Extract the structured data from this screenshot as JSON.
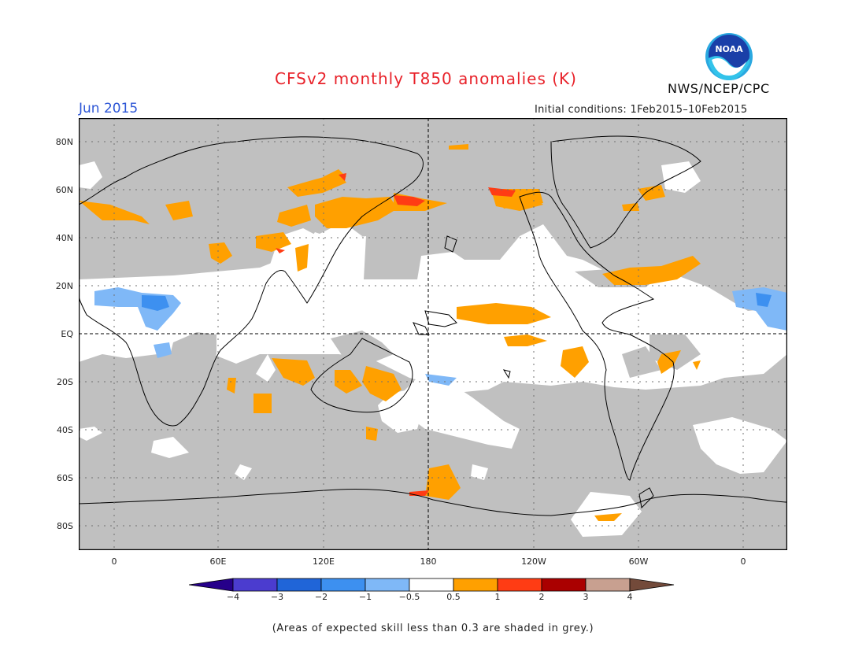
{
  "header": {
    "title": "CFSv2 monthly T850 anomalies (K)",
    "period": "Jun 2015",
    "initial_conditions": "Initial conditions: 1Feb2015–10Feb2015",
    "agency": "NWS/NCEP/CPC",
    "logo_text": "NOAA"
  },
  "map": {
    "lat_labels": [
      "80N",
      "60N",
      "40N",
      "20N",
      "EQ",
      "20S",
      "40S",
      "60S",
      "80S"
    ],
    "lon_labels": [
      "0",
      "60E",
      "120E",
      "180",
      "120W",
      "60W",
      "0"
    ],
    "background_color": "#c0c0c0",
    "low_skill_color": "#c0c0c0"
  },
  "colorbar": {
    "labels": [
      "−4",
      "−3",
      "−2",
      "−1",
      "−0.5",
      "0.5",
      "1",
      "2",
      "3",
      "4"
    ],
    "colors": [
      "#26008a",
      "#4b3ccf",
      "#2065d8",
      "#3d90f0",
      "#7fb8f7",
      "#ffffff",
      "#ffa000",
      "#ff3c14",
      "#aa0000",
      "#c8a090",
      "#734a3a"
    ]
  },
  "footnote": "(Areas of expected skill less than 0.3 are shaded in grey.)"
}
